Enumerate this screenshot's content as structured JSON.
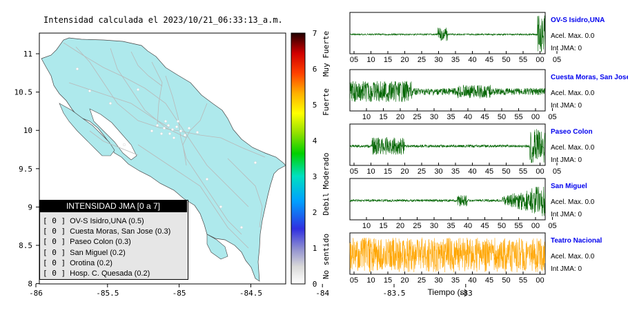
{
  "map": {
    "title": "Intensidad calculada el 2023/10/21_06:33:13_a.m.",
    "x_ticks": [
      "-86",
      "-85.5",
      "-85",
      "-84.5",
      "-84",
      "-83.5",
      "-83"
    ],
    "y_ticks": [
      "11",
      "10.5",
      "10",
      "9.5",
      "9",
      "8.5",
      "8"
    ],
    "land_color": "#aee9ec",
    "road_color": "#b8b8b8"
  },
  "colorbar": {
    "ticks": [
      "7",
      "6",
      "5",
      "4",
      "3",
      "2",
      "1",
      "0"
    ],
    "labels": [
      "Muy Fuerte",
      "Fuerte",
      "Moderado",
      "Debil",
      "No sentido"
    ]
  },
  "legend": {
    "title": "INTENSIDAD JMA [0 a 7]",
    "items": [
      {
        "tag": "[ 0 ]",
        "text": "OV-S Isidro,UNA (0.5)"
      },
      {
        "tag": "[ 0 ]",
        "text": "Cuesta Moras, San Jose (0.3)"
      },
      {
        "tag": "[ 0 ]",
        "text": "Paseo Colon (0.3)"
      },
      {
        "tag": "[ 0 ]",
        "text": "San Miguel (0.2)"
      },
      {
        "tag": "[ 0 ]",
        "text": "Orotina (0.2)"
      },
      {
        "tag": "[ 0 ]",
        "text": "Hosp. C. Quesada (0.2)"
      }
    ]
  },
  "stations": [
    {
      "name": "OV-S Isidro,UNA",
      "acel": "Acel. Max. 0.0",
      "int": "Int JMA: 0",
      "color": "#006400",
      "ticks": [
        "05",
        "10",
        "15",
        "20",
        "25",
        "30",
        "35",
        "40",
        "45",
        "50",
        "55",
        "00",
        "05"
      ]
    },
    {
      "name": "Cuesta Moras, San Jose",
      "acel": "Acel. Max. 0.0",
      "int": "Int JMA: 0",
      "color": "#006400",
      "ticks": [
        "10",
        "15",
        "20",
        "25",
        "30",
        "35",
        "40",
        "45",
        "50",
        "55",
        "00",
        "05"
      ]
    },
    {
      "name": "Paseo Colon",
      "acel": "Acel. Max. 0.0",
      "int": "Int JMA: 0",
      "color": "#006400",
      "ticks": [
        "05",
        "10",
        "15",
        "20",
        "25",
        "30",
        "35",
        "40",
        "45",
        "50",
        "55",
        "00",
        "05"
      ]
    },
    {
      "name": "San Miguel",
      "acel": "Acel. Max. 0.0",
      "int": "Int JMA: 0",
      "color": "#006400",
      "ticks": [
        "10",
        "15",
        "20",
        "25",
        "30",
        "35",
        "40",
        "45",
        "50",
        "55",
        "00",
        "05"
      ]
    },
    {
      "name": "Teatro Nacional",
      "acel": "Acel. Max. 0.0",
      "int": "Int JMA: 0",
      "color": "#ffa500",
      "ticks": [
        "05",
        "10",
        "15",
        "20",
        "25",
        "30",
        "35",
        "40",
        "45",
        "50",
        "55",
        "00"
      ]
    }
  ],
  "xlabel": "Tiempo (s)",
  "chart_data": {
    "type": "line",
    "title": "Intensidad calculada el 2023/10/21_06:33:13_a.m.",
    "xlabel": "Tiempo (s)",
    "ylabel": "",
    "series": [
      {
        "name": "OV-S Isidro,UNA",
        "acel_max": 0.0,
        "int_jma": 0
      },
      {
        "name": "Cuesta Moras, San Jose",
        "acel_max": 0.0,
        "int_jma": 0
      },
      {
        "name": "Paseo Colon",
        "acel_max": 0.0,
        "int_jma": 0
      },
      {
        "name": "San Miguel",
        "acel_max": 0.0,
        "int_jma": 0
      },
      {
        "name": "Teatro Nacional",
        "acel_max": 0.0,
        "int_jma": 0
      }
    ],
    "intensity_values": [
      {
        "station": "OV-S Isidro,UNA",
        "value": 0.5
      },
      {
        "station": "Cuesta Moras, San Jose",
        "value": 0.3
      },
      {
        "station": "Paseo Colon",
        "value": 0.3
      },
      {
        "station": "San Miguel",
        "value": 0.2
      },
      {
        "station": "Orotina",
        "value": 0.2
      },
      {
        "station": "Hosp. C. Quesada",
        "value": 0.2
      }
    ],
    "map_xlim": [
      -86,
      -82.5
    ],
    "map_ylim": [
      8,
      11.2
    ],
    "colorbar_range": [
      0,
      7
    ]
  }
}
